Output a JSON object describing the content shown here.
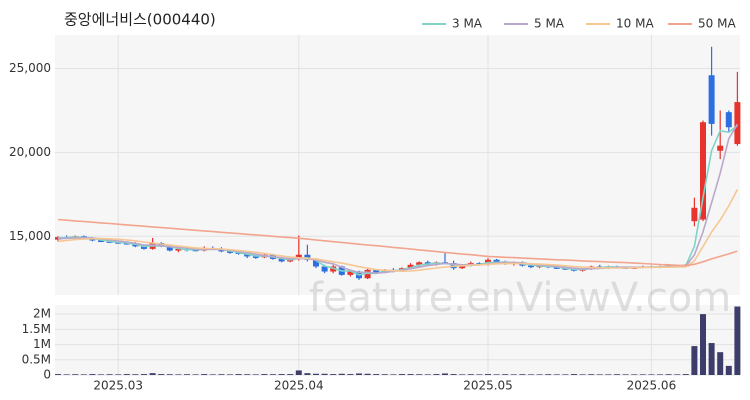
{
  "chart_data": {
    "type": "candlestick",
    "title": "중앙에너비스(000440)",
    "watermark": "feature.enViewV.com",
    "grid": true,
    "legend": "top-right",
    "up_color": "#e8322d",
    "down_color": "#2d6fe0",
    "categories": [
      null,
      null,
      null,
      null,
      null,
      null,
      null,
      "2025.03",
      null,
      null,
      null,
      null,
      null,
      null,
      null,
      null,
      null,
      null,
      null,
      null,
      null,
      null,
      null,
      null,
      null,
      null,
      null,
      null,
      "2025.04",
      null,
      null,
      null,
      null,
      null,
      null,
      null,
      null,
      null,
      null,
      null,
      null,
      null,
      null,
      null,
      null,
      null,
      null,
      null,
      null,
      null,
      "2025.05",
      null,
      null,
      null,
      null,
      null,
      null,
      null,
      null,
      null,
      null,
      null,
      null,
      null,
      null,
      null,
      null,
      null,
      null,
      "2025.06",
      null,
      null,
      null,
      null,
      null,
      null,
      null,
      null,
      null,
      null
    ],
    "open": [
      14800,
      14950,
      14900,
      15000,
      14900,
      14750,
      14700,
      14650,
      14600,
      14550,
      14400,
      14250,
      14600,
      14400,
      14150,
      14250,
      14200,
      14150,
      14300,
      14250,
      14100,
      14050,
      13950,
      13800,
      13750,
      13900,
      13650,
      13500,
      13650,
      13900,
      13600,
      13200,
      12900,
      13200,
      12700,
      12900,
      12500,
      13000,
      12850,
      13000,
      12950,
      13100,
      13300,
      13450,
      13300,
      13450,
      13400,
      13100,
      13250,
      13400,
      13300,
      13600,
      13450,
      13350,
      13450,
      13250,
      13200,
      13250,
      13150,
      13100,
      13050,
      12950,
      13050,
      13200,
      13150,
      13200,
      13150,
      13100,
      13150,
      13200,
      13150,
      13200,
      13250,
      13200,
      15900,
      16000,
      24600,
      20100,
      22400,
      20500
    ],
    "high": [
      15000,
      15050,
      15050,
      15050,
      14950,
      14850,
      14800,
      14750,
      14700,
      14650,
      14500,
      14900,
      14650,
      14450,
      14300,
      14350,
      14300,
      14400,
      14400,
      14350,
      14200,
      14150,
      14050,
      13900,
      13950,
      13950,
      13750,
      13700,
      15050,
      14500,
      13700,
      13300,
      13300,
      13250,
      13000,
      12950,
      13100,
      13050,
      13050,
      13100,
      13150,
      13400,
      13500,
      13550,
      13500,
      14000,
      13550,
      13300,
      13500,
      13450,
      13700,
      13650,
      13550,
      13500,
      13500,
      13350,
      13300,
      13300,
      13250,
      13200,
      13150,
      13100,
      13250,
      13300,
      13250,
      13250,
      13200,
      13200,
      13250,
      13250,
      13250,
      13300,
      13300,
      13350,
      17300,
      21900,
      26300,
      22500,
      22500,
      24800
    ],
    "low": [
      14700,
      14850,
      14850,
      14850,
      14700,
      14650,
      14600,
      14550,
      14500,
      14350,
      14200,
      14200,
      14350,
      14100,
      14050,
      14100,
      14100,
      14100,
      14200,
      14050,
      13950,
      13900,
      13700,
      13650,
      13700,
      13600,
      13450,
      13450,
      13550,
      13500,
      13100,
      12800,
      12800,
      12650,
      12600,
      12400,
      12450,
      12750,
      12800,
      12850,
      12900,
      13050,
      13200,
      13250,
      13250,
      13350,
      13000,
      13050,
      13200,
      13250,
      13250,
      13400,
      13300,
      13250,
      13200,
      13100,
      13100,
      13100,
      13050,
      13000,
      12900,
      12900,
      13000,
      13100,
      13050,
      13100,
      13050,
      13050,
      13100,
      13100,
      13100,
      13150,
      13150,
      13150,
      15600,
      15900,
      21000,
      19600,
      21200,
      20400
    ],
    "close": [
      14950,
      14900,
      15000,
      14900,
      14750,
      14700,
      14650,
      14600,
      14550,
      14400,
      14250,
      14600,
      14400,
      14150,
      14250,
      14200,
      14150,
      14300,
      14250,
      14100,
      14050,
      13950,
      13800,
      13750,
      13900,
      13650,
      13500,
      13650,
      13900,
      13600,
      13200,
      12900,
      13200,
      12700,
      12900,
      12500,
      13000,
      12850,
      13000,
      12950,
      13100,
      13300,
      13450,
      13300,
      13450,
      13400,
      13100,
      13250,
      13400,
      13300,
      13600,
      13450,
      13350,
      13450,
      13250,
      13200,
      13250,
      13150,
      13100,
      13050,
      12950,
      13050,
      13200,
      13150,
      13200,
      13150,
      13100,
      13150,
      13200,
      13150,
      13200,
      13250,
      13200,
      13300,
      16700,
      21800,
      21700,
      20400,
      21500,
      23000
    ],
    "ylim": [
      11500,
      27000
    ],
    "yticks": [
      {
        "value": 15000,
        "label": "15,000"
      },
      {
        "value": 20000,
        "label": "20,000"
      },
      {
        "value": 25000,
        "label": "25,000"
      }
    ],
    "series": [
      {
        "name": "3 MA",
        "color": "#7fd3c6",
        "values": [
          14900,
          14920,
          14950,
          14930,
          14880,
          14780,
          14700,
          14650,
          14600,
          14520,
          14400,
          14420,
          14420,
          14380,
          14270,
          14200,
          14200,
          14220,
          14230,
          14220,
          14130,
          14030,
          13930,
          13830,
          13820,
          13770,
          13680,
          13600,
          13680,
          13720,
          13570,
          13230,
          13100,
          12930,
          12930,
          12700,
          12800,
          12780,
          12950,
          12930,
          13020,
          13120,
          13280,
          13350,
          13400,
          13380,
          13320,
          13250,
          13250,
          13320,
          13430,
          13450,
          13470,
          13420,
          13350,
          13300,
          13230,
          13200,
          13170,
          13100,
          13030,
          13020,
          13070,
          13130,
          13180,
          13170,
          13150,
          13130,
          13150,
          13170,
          13180,
          13200,
          13220,
          13250,
          14400,
          17300,
          20100,
          21300,
          21200,
          21600
        ]
      },
      {
        "name": "5 MA",
        "color": "#b9a7cc",
        "values": [
          14850,
          14880,
          14900,
          14910,
          14900,
          14850,
          14780,
          14720,
          14650,
          14580,
          14480,
          14480,
          14440,
          14380,
          14330,
          14320,
          14230,
          14220,
          14230,
          14220,
          14170,
          14100,
          14020,
          13930,
          13850,
          13780,
          13720,
          13660,
          13680,
          13660,
          13590,
          13450,
          13360,
          13150,
          12980,
          12840,
          12860,
          12800,
          12850,
          12910,
          12980,
          13060,
          13160,
          13250,
          13320,
          13380,
          13350,
          13300,
          13310,
          13290,
          13350,
          13410,
          13440,
          13430,
          13420,
          13350,
          13300,
          13260,
          13190,
          13150,
          13090,
          13060,
          13070,
          13080,
          13110,
          13150,
          13160,
          13160,
          13160,
          13160,
          13160,
          13180,
          13200,
          13220,
          13890,
          15260,
          17000,
          18760,
          20820,
          21680
        ]
      },
      {
        "name": "10 MA",
        "color": "#f6c693",
        "values": [
          14700,
          14750,
          14800,
          14830,
          14850,
          14860,
          14850,
          14820,
          14780,
          14730,
          14660,
          14600,
          14540,
          14480,
          14420,
          14360,
          14310,
          14280,
          14270,
          14240,
          14200,
          14150,
          14100,
          14050,
          13980,
          13900,
          13830,
          13760,
          13720,
          13690,
          13650,
          13560,
          13480,
          13400,
          13300,
          13190,
          13100,
          13010,
          12980,
          12950,
          12920,
          12930,
          12980,
          13050,
          13110,
          13170,
          13210,
          13240,
          13270,
          13300,
          13330,
          13360,
          13370,
          13370,
          13370,
          13360,
          13340,
          13310,
          13280,
          13240,
          13200,
          13170,
          13140,
          13120,
          13110,
          13110,
          13110,
          13130,
          13140,
          13150,
          13160,
          13160,
          13170,
          13180,
          13530,
          14390,
          15250,
          15980,
          16810,
          17790
        ]
      },
      {
        "name": "50 MA",
        "color": "#f2a48e",
        "values": [
          16000,
          15960,
          15920,
          15880,
          15840,
          15800,
          15760,
          15720,
          15680,
          15640,
          15600,
          15560,
          15520,
          15480,
          15440,
          15400,
          15360,
          15320,
          15280,
          15240,
          15200,
          15160,
          15120,
          15080,
          15040,
          15000,
          14960,
          14920,
          14880,
          14830,
          14780,
          14730,
          14680,
          14630,
          14580,
          14530,
          14480,
          14440,
          14390,
          14340,
          14290,
          14240,
          14190,
          14140,
          14090,
          14040,
          13990,
          13940,
          13900,
          13850,
          13800,
          13780,
          13750,
          13730,
          13700,
          13680,
          13650,
          13630,
          13600,
          13580,
          13560,
          13530,
          13510,
          13490,
          13470,
          13450,
          13430,
          13400,
          13380,
          13350,
          13320,
          13300,
          13270,
          13250,
          13330,
          13480,
          13650,
          13800,
          13950,
          14120
        ]
      }
    ],
    "volume": {
      "color": "#3d3d6b",
      "values": [
        30000,
        20000,
        25000,
        20000,
        30000,
        20000,
        25000,
        20000,
        30000,
        25000,
        30000,
        60000,
        30000,
        25000,
        20000,
        25000,
        20000,
        30000,
        20000,
        25000,
        20000,
        30000,
        25000,
        20000,
        30000,
        25000,
        30000,
        30000,
        150000,
        60000,
        40000,
        40000,
        30000,
        40000,
        30000,
        50000,
        40000,
        30000,
        25000,
        20000,
        30000,
        30000,
        25000,
        20000,
        30000,
        50000,
        30000,
        20000,
        25000,
        20000,
        30000,
        20000,
        25000,
        20000,
        25000,
        20000,
        20000,
        25000,
        20000,
        20000,
        30000,
        20000,
        25000,
        20000,
        20000,
        25000,
        20000,
        20000,
        20000,
        20000,
        20000,
        25000,
        20000,
        30000,
        950000,
        2000000,
        1050000,
        750000,
        300000,
        2250000
      ],
      "ylim": [
        0,
        2300000
      ],
      "yticks": [
        0,
        {
          "value": 500000,
          "label": "0.5M"
        },
        {
          "value": 1000000,
          "label": "1M"
        },
        {
          "value": 1500000,
          "label": "1.5M"
        },
        {
          "value": 2000000,
          "label": "2M"
        }
      ]
    }
  }
}
